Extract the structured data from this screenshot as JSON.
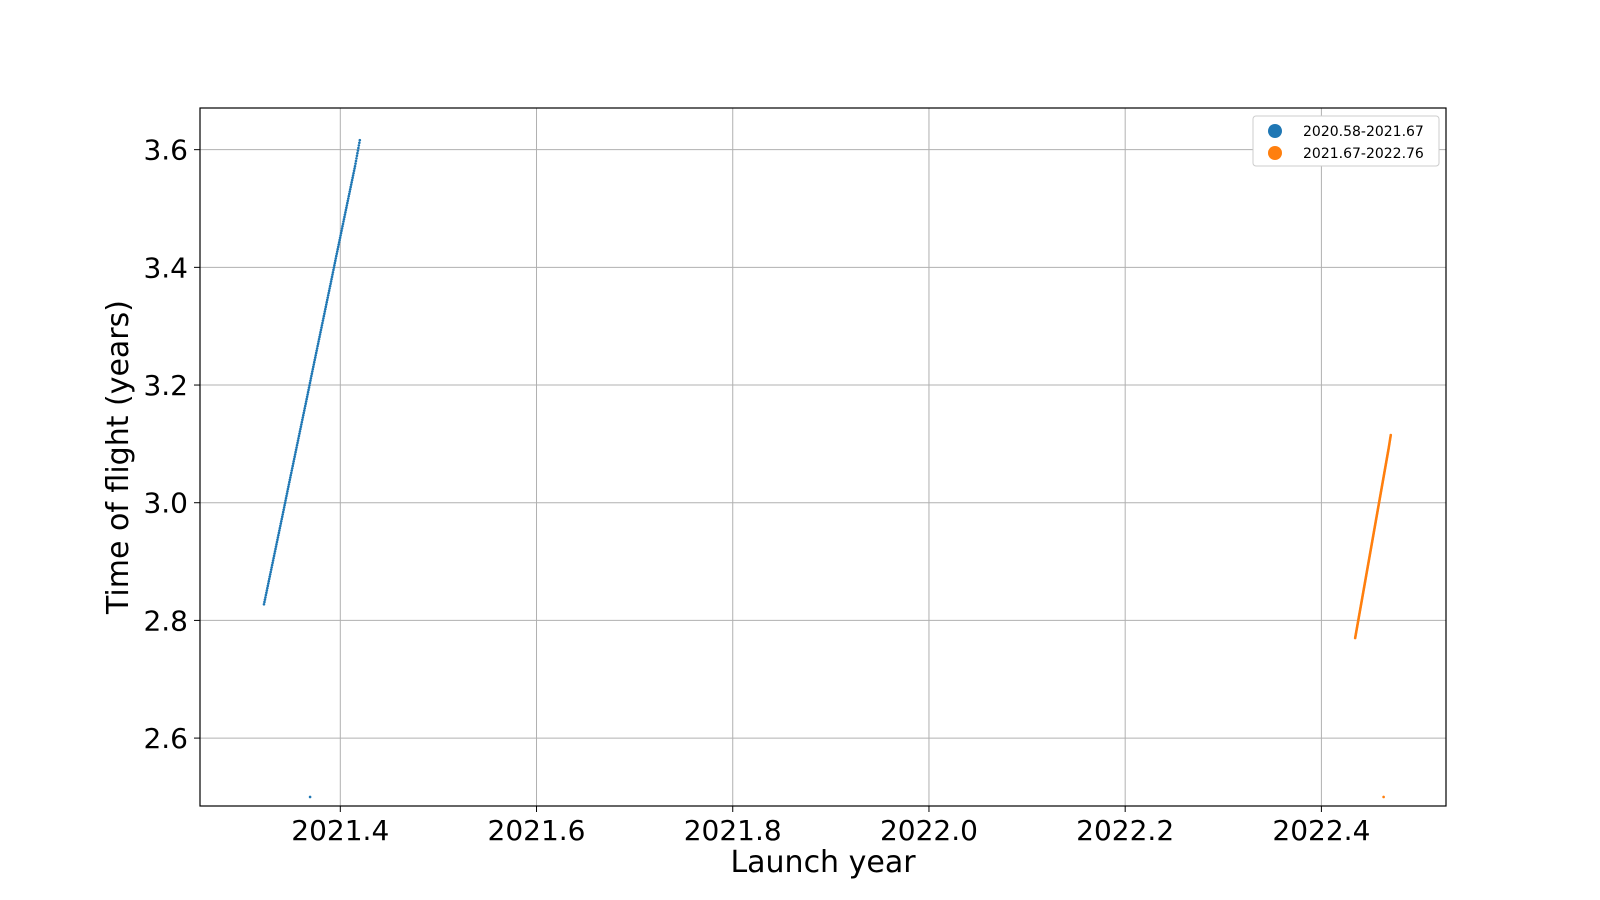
{
  "chart_data": {
    "type": "scatter",
    "title": "",
    "xlabel": "Launch year",
    "ylabel": "Time of flight (years)",
    "xlim": [
      2021.257,
      2022.527
    ],
    "ylim": [
      2.4846,
      3.6708
    ],
    "x_ticks": [
      {
        "value": 2021.4,
        "label": "2021.4"
      },
      {
        "value": 2021.6,
        "label": "2021.6"
      },
      {
        "value": 2021.8,
        "label": "2021.8"
      },
      {
        "value": 2022.0,
        "label": "2022.0"
      },
      {
        "value": 2022.2,
        "label": "2022.2"
      },
      {
        "value": 2022.4,
        "label": "2022.4"
      }
    ],
    "y_ticks": [
      {
        "value": 2.6,
        "label": "2.6"
      },
      {
        "value": 2.8,
        "label": "2.8"
      },
      {
        "value": 3.0,
        "label": "3.0"
      },
      {
        "value": 3.2,
        "label": "3.2"
      },
      {
        "value": 3.4,
        "label": "3.4"
      },
      {
        "value": 3.6,
        "label": "3.6"
      }
    ],
    "grid": true,
    "legend_position": "top-right",
    "series": [
      {
        "name": "2020.58-2021.67",
        "color": "#1f77b4",
        "points": [
          {
            "x": 2021.3222,
            "y": 2.8274
          },
          {
            "x": 2021.3271,
            "y": 2.8666
          },
          {
            "x": 2021.332,
            "y": 2.9058
          },
          {
            "x": 2021.3369,
            "y": 2.9449
          },
          {
            "x": 2021.3418,
            "y": 2.9841
          },
          {
            "x": 2021.3466,
            "y": 3.0233
          },
          {
            "x": 2021.3515,
            "y": 3.0625
          },
          {
            "x": 2021.3564,
            "y": 3.1017
          },
          {
            "x": 2021.3613,
            "y": 3.1409
          },
          {
            "x": 2021.3662,
            "y": 3.18
          },
          {
            "x": 2021.371,
            "y": 3.2192
          },
          {
            "x": 2021.3759,
            "y": 3.2584
          },
          {
            "x": 2021.3808,
            "y": 3.2976
          },
          {
            "x": 2021.3857,
            "y": 3.3368
          },
          {
            "x": 2021.3906,
            "y": 3.376
          },
          {
            "x": 2021.3954,
            "y": 3.4152
          },
          {
            "x": 2021.4003,
            "y": 3.4543
          },
          {
            "x": 2021.4052,
            "y": 3.4935
          },
          {
            "x": 2021.4101,
            "y": 3.5327
          },
          {
            "x": 2021.415,
            "y": 3.5719
          },
          {
            "x": 2021.4199,
            "y": 3.6161
          },
          {
            "x": 2021.3692,
            "y": 2.5
          }
        ]
      },
      {
        "name": "2021.67-2022.76",
        "color": "#ff7f0e",
        "points": [
          {
            "x": 2022.4344,
            "y": 2.77
          },
          {
            "x": 2022.4362,
            "y": 2.787
          },
          {
            "x": 2022.438,
            "y": 2.804
          },
          {
            "x": 2022.4398,
            "y": 2.821
          },
          {
            "x": 2022.4416,
            "y": 2.838
          },
          {
            "x": 2022.4434,
            "y": 2.855
          },
          {
            "x": 2022.4452,
            "y": 2.872
          },
          {
            "x": 2022.447,
            "y": 2.889
          },
          {
            "x": 2022.4488,
            "y": 2.906
          },
          {
            "x": 2022.4506,
            "y": 2.923
          },
          {
            "x": 2022.4524,
            "y": 2.94
          },
          {
            "x": 2022.4542,
            "y": 2.957
          },
          {
            "x": 2022.456,
            "y": 2.974
          },
          {
            "x": 2022.4578,
            "y": 2.991
          },
          {
            "x": 2022.4596,
            "y": 3.008
          },
          {
            "x": 2022.4614,
            "y": 3.025
          },
          {
            "x": 2022.4632,
            "y": 3.042
          },
          {
            "x": 2022.465,
            "y": 3.059
          },
          {
            "x": 2022.4668,
            "y": 3.076
          },
          {
            "x": 2022.4686,
            "y": 3.093
          },
          {
            "x": 2022.4707,
            "y": 3.115
          },
          {
            "x": 2022.4634,
            "y": 2.5
          }
        ]
      }
    ]
  }
}
